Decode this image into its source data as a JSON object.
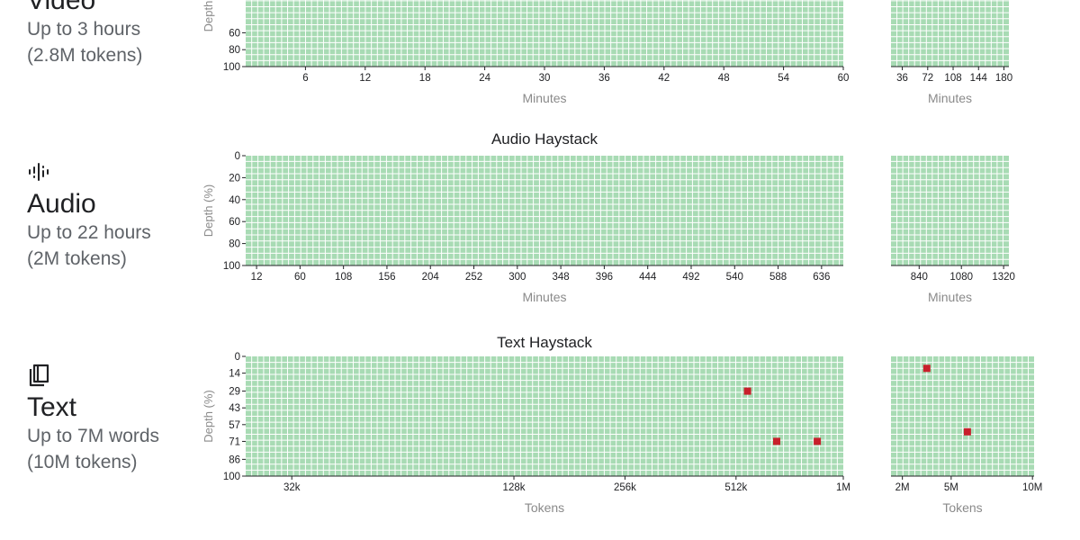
{
  "modalities": [
    {
      "icon": "video-icon",
      "name": "Video",
      "desc1": "Up to 3 hours",
      "desc2": "(2.8M tokens)"
    },
    {
      "icon": "audio-waveform-icon",
      "name": "Audio",
      "desc1": "Up to 22 hours",
      "desc2": "(2M tokens)"
    },
    {
      "icon": "book-icon",
      "name": "Text",
      "desc1": "Up to 7M words",
      "desc2": "(10M tokens)"
    }
  ],
  "chart_data": [
    {
      "type": "heatmap",
      "title": "",
      "ylabel": "Depth",
      "colors": {
        "pass": "#a8dbb4",
        "fail": "#c8202c",
        "grid": "#ffffff"
      },
      "panels": [
        {
          "xlabel": "Minutes",
          "x_ticks": [
            "6",
            "12",
            "18",
            "24",
            "30",
            "36",
            "42",
            "48",
            "54",
            "60"
          ],
          "y_ticks": [
            "60",
            "80",
            "100"
          ],
          "failures": []
        },
        {
          "xlabel": "Minutes",
          "x_ticks": [
            "36",
            "72",
            "108",
            "144",
            "180"
          ],
          "failures": []
        }
      ]
    },
    {
      "type": "heatmap",
      "title": "Audio Haystack",
      "ylabel": "Depth (%)",
      "colors": {
        "pass": "#a8dbb4",
        "fail": "#c8202c",
        "grid": "#ffffff"
      },
      "panels": [
        {
          "xlabel": "Minutes",
          "x_ticks": [
            "12",
            "60",
            "108",
            "156",
            "204",
            "252",
            "300",
            "348",
            "396",
            "444",
            "492",
            "540",
            "588",
            "636"
          ],
          "y_ticks": [
            "0",
            "20",
            "40",
            "60",
            "80",
            "100"
          ],
          "failures": []
        },
        {
          "xlabel": "Minutes",
          "x_ticks": [
            "840",
            "1080",
            "1320"
          ],
          "failures": []
        }
      ]
    },
    {
      "type": "heatmap",
      "title": "Text Haystack",
      "ylabel": "Depth (%)",
      "colors": {
        "pass": "#a8dbb4",
        "fail": "#c8202c",
        "grid": "#ffffff"
      },
      "panels": [
        {
          "xlabel": "Tokens",
          "x_ticks": [
            "32k",
            "128k",
            "256k",
            "512k",
            "1M"
          ],
          "y_ticks": [
            "0",
            "14",
            "29",
            "43",
            "57",
            "71",
            "86",
            "100"
          ],
          "failures": [
            {
              "x": "550k",
              "depth": 29
            },
            {
              "x": "660k",
              "depth": 71
            },
            {
              "x": "850k",
              "depth": 71
            }
          ]
        },
        {
          "xlabel": "Tokens",
          "x_ticks": [
            "2M",
            "5M",
            "10M"
          ],
          "failures": [
            {
              "x": "3.5M",
              "depth": 10
            },
            {
              "x": "6M",
              "depth": 63
            }
          ]
        }
      ]
    }
  ]
}
